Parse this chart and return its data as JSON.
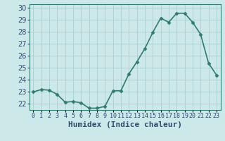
{
  "x": [
    0,
    1,
    2,
    3,
    4,
    5,
    6,
    7,
    8,
    9,
    10,
    11,
    12,
    13,
    14,
    15,
    16,
    17,
    18,
    19,
    20,
    21,
    22,
    23
  ],
  "y": [
    23.0,
    23.2,
    23.15,
    22.8,
    22.15,
    22.2,
    22.1,
    21.65,
    21.65,
    21.8,
    23.1,
    23.1,
    24.5,
    25.5,
    26.6,
    27.95,
    29.15,
    28.8,
    29.55,
    29.55,
    28.8,
    27.8,
    25.4,
    24.4
  ],
  "line_color": "#2e7d6e",
  "marker": "D",
  "markersize": 2.5,
  "linewidth": 1.2,
  "bg_color": "#cce8e8",
  "grid_color": "#aacece",
  "xlabel": "Humidex (Indice chaleur)",
  "xlabel_fontsize": 8,
  "ylabel_fontsize": 7,
  "tick_fontsize": 6,
  "xlim": [
    -0.5,
    23.5
  ],
  "ylim": [
    21.5,
    30.3
  ],
  "yticks": [
    22,
    23,
    24,
    25,
    26,
    27,
    28,
    29,
    30
  ],
  "xtick_labels": [
    "0",
    "1",
    "2",
    "3",
    "4",
    "5",
    "6",
    "7",
    "8",
    "9",
    "10",
    "11",
    "12",
    "13",
    "14",
    "15",
    "16",
    "17",
    "18",
    "19",
    "20",
    "21",
    "22",
    "23"
  ],
  "xlabel_color": "#2e4a6e",
  "tick_color": "#2e4a6e",
  "spine_color": "#2e7d6e"
}
